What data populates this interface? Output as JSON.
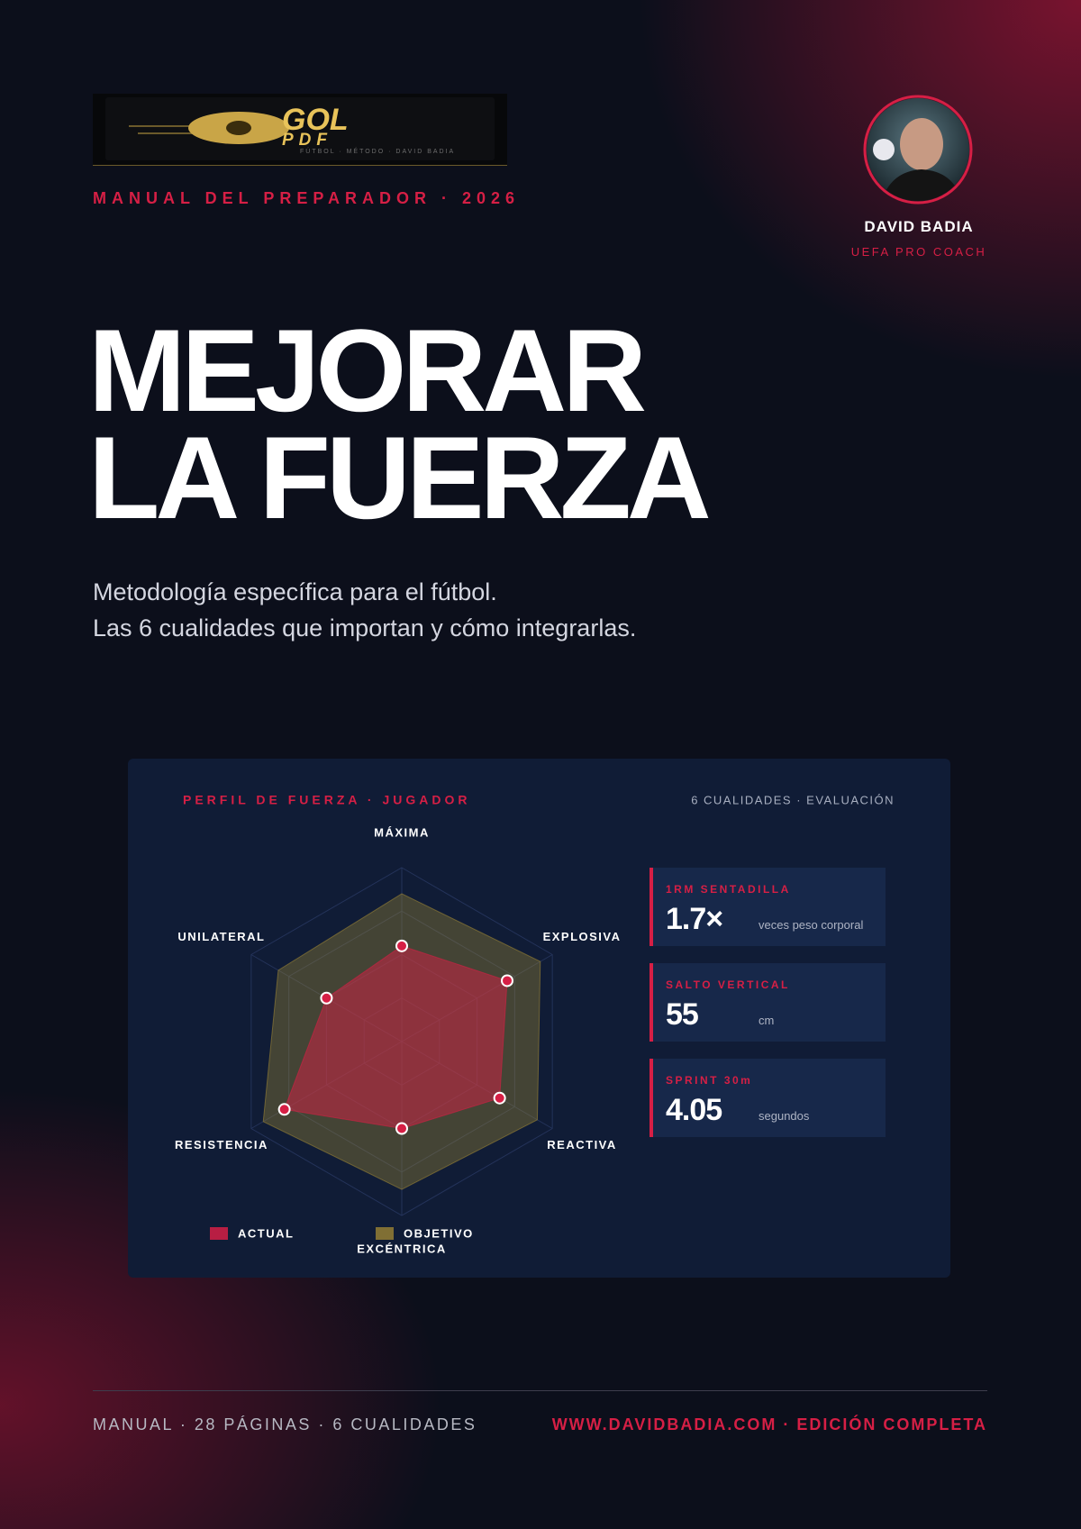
{
  "header": {
    "logo": {
      "title": "GOL",
      "subtitle": "PDF",
      "tagline": "FÚTBOL · MÉTODO · DAVID BADIA"
    },
    "kicker": "MANUAL DEL PREPARADOR · 2026",
    "author": {
      "name": "DAVID BADIA",
      "role": "UEFA PRO COACH"
    }
  },
  "title": [
    "MEJORAR",
    "LA FUERZA"
  ],
  "subtitle": [
    "Metodología específica para el fútbol.",
    "Las 6 cualidades que importan y cómo integrarlas."
  ],
  "chart_data": {
    "type": "radar",
    "title": "PERFIL DE FUERZA · JUGADOR",
    "subtitle": "6 CUALIDADES · EVALUACIÓN",
    "categories": [
      "MÁXIMA",
      "EXPLOSIVA",
      "REACTIVA",
      "EXCÉNTRICA",
      "RESISTENCIA",
      "UNILATERAL"
    ],
    "series": [
      {
        "name": "ACTUAL",
        "color": "#d61f45",
        "values": [
          55,
          70,
          65,
          50,
          78,
          50
        ]
      },
      {
        "name": "OBJETIVO",
        "color": "#9c8535",
        "values": [
          85,
          92,
          90,
          85,
          92,
          82
        ]
      }
    ],
    "rlim": [
      0,
      100
    ],
    "rticks": [
      25,
      50,
      75,
      100
    ]
  },
  "stats": [
    {
      "label": "1RM SENTADILLA",
      "value": "1.7×",
      "unit": "veces peso corporal"
    },
    {
      "label": "SALTO VERTICAL",
      "value": 55,
      "unit": "cm"
    },
    {
      "label": "SPRINT 30m",
      "value": 4.05,
      "unit": "segundos"
    }
  ],
  "footer": {
    "left": "MANUAL · 28 PÁGINAS · 6 CUALIDADES",
    "right": "WWW.DAVIDBADIA.COM · EDICIÓN COMPLETA"
  }
}
